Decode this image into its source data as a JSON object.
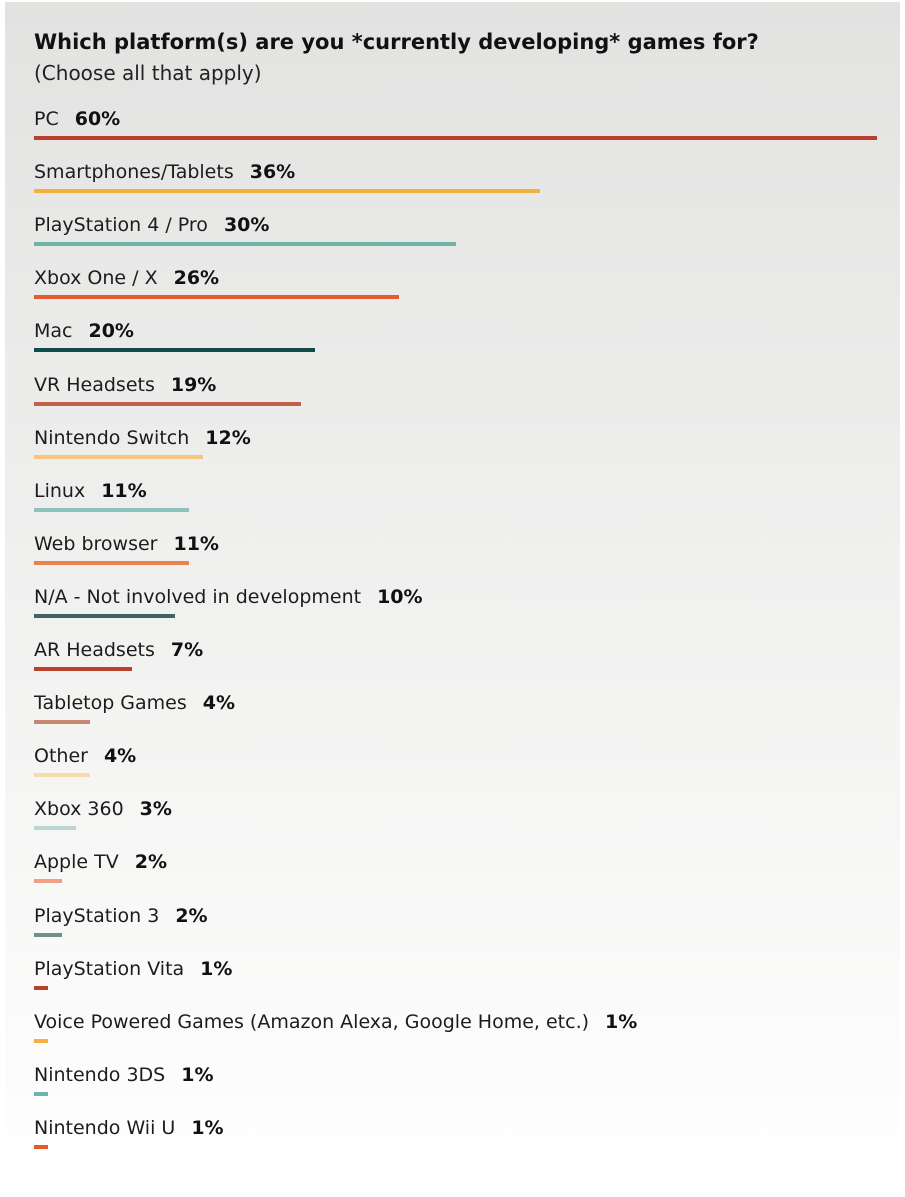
{
  "chart_data": {
    "type": "bar",
    "orientation": "horizontal",
    "title": "Which platform(s) are you *currently developing* games for?",
    "subtitle": "(Choose all that apply)",
    "categories": [
      "PC",
      "Smartphones/Tablets",
      "PlayStation 4 / Pro",
      "Xbox One / X",
      "Mac",
      "VR Headsets",
      "Nintendo Switch",
      "Linux",
      "Web browser",
      "N/A - Not involved in development",
      "AR Headsets",
      "Tabletop Games",
      "Other",
      "Xbox 360",
      "Apple TV",
      "PlayStation 3",
      "PlayStation Vita",
      "Voice Powered Games (Amazon Alexa, Google Home, etc.)",
      "Nintendo 3DS",
      "Nintendo Wii U"
    ],
    "values": [
      60,
      36,
      30,
      26,
      20,
      19,
      12,
      11,
      11,
      10,
      7,
      4,
      4,
      3,
      2,
      2,
      1,
      1,
      1,
      1
    ],
    "value_labels": [
      "60%",
      "36%",
      "30%",
      "26%",
      "20%",
      "19%",
      "12%",
      "11%",
      "11%",
      "10%",
      "7%",
      "4%",
      "4%",
      "3%",
      "2%",
      "2%",
      "1%",
      "1%",
      "1%",
      "1%"
    ],
    "colors": [
      "#b8412e",
      "#f5b041",
      "#6fb3a9",
      "#e8592e",
      "#0f4b49",
      "#c0614b",
      "#f7c57f",
      "#8cc4bd",
      "#ee8050",
      "#3f6462",
      "#b8412e",
      "#c98872",
      "#f8dbab",
      "#bcd7d3",
      "#f3a184",
      "#748e8b",
      "#b8412e",
      "#f5b041",
      "#6fb3a9",
      "#e8592e"
    ],
    "xlim": [
      0,
      60
    ],
    "grid": false,
    "legend": "none"
  }
}
